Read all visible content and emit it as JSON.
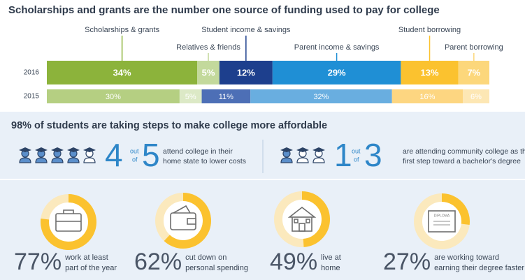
{
  "chart_data": {
    "type": "stacked_bar_horizontal",
    "title": "Scholarships and grants are the number one source of funding used to pay for college",
    "categories": [
      "2016",
      "2015"
    ],
    "xlim": [
      0,
      100
    ],
    "series": [
      {
        "name": "Scholarships & grants",
        "colors": [
          "#8cb33b",
          "#b5cf82"
        ],
        "values": [
          34,
          30
        ],
        "value_labels": [
          "34%",
          "30%"
        ]
      },
      {
        "name": "Relatives & friends",
        "colors": [
          "#c3d99c",
          "#dce9c6"
        ],
        "values": [
          5,
          5
        ],
        "value_labels": [
          "5%",
          "5%"
        ]
      },
      {
        "name": "Student income & savings",
        "colors": [
          "#1d3f8d",
          "#4d6fb6"
        ],
        "values": [
          12,
          11
        ],
        "value_labels": [
          "12%",
          "11%"
        ]
      },
      {
        "name": "Parent income & savings",
        "colors": [
          "#1f8fd5",
          "#69aee0"
        ],
        "values": [
          29,
          32
        ],
        "value_labels": [
          "29%",
          "32%"
        ]
      },
      {
        "name": "Student borrowing",
        "colors": [
          "#fbc22f",
          "#fdd681"
        ],
        "values": [
          13,
          16
        ],
        "value_labels": [
          "13%",
          "16%"
        ]
      },
      {
        "name": "Parent borrowing",
        "colors": [
          "#fcd77b",
          "#fde7b4"
        ],
        "values": [
          7,
          6
        ],
        "value_labels": [
          "7%",
          "6%"
        ]
      }
    ]
  },
  "affordability": {
    "heading": "98% of students are taking steps to make college more affordable",
    "fractions": [
      {
        "numerator": 4,
        "out_of": [
          "out",
          "of"
        ],
        "denominator": 5,
        "lines": [
          "attend college in their",
          "home state to lower costs"
        ]
      },
      {
        "numerator": 1,
        "out_of": [
          "out",
          "of"
        ],
        "denominator": 3,
        "lines": [
          "are attending community college as the",
          "first step toward a bachelor's degree"
        ]
      }
    ],
    "stats": [
      {
        "percent": 77,
        "percent_label": "77%",
        "lines": [
          "work at least",
          "part of the year"
        ]
      },
      {
        "percent": 62,
        "percent_label": "62%",
        "lines": [
          "cut down on",
          "personal spending"
        ]
      },
      {
        "percent": 49,
        "percent_label": "49%",
        "lines": [
          "live at",
          "home"
        ]
      },
      {
        "percent": 27,
        "percent_label": "27%",
        "lines": [
          "are working toward",
          "earning their degree faster"
        ],
        "icon_text": "DIPLOMA"
      }
    ]
  }
}
